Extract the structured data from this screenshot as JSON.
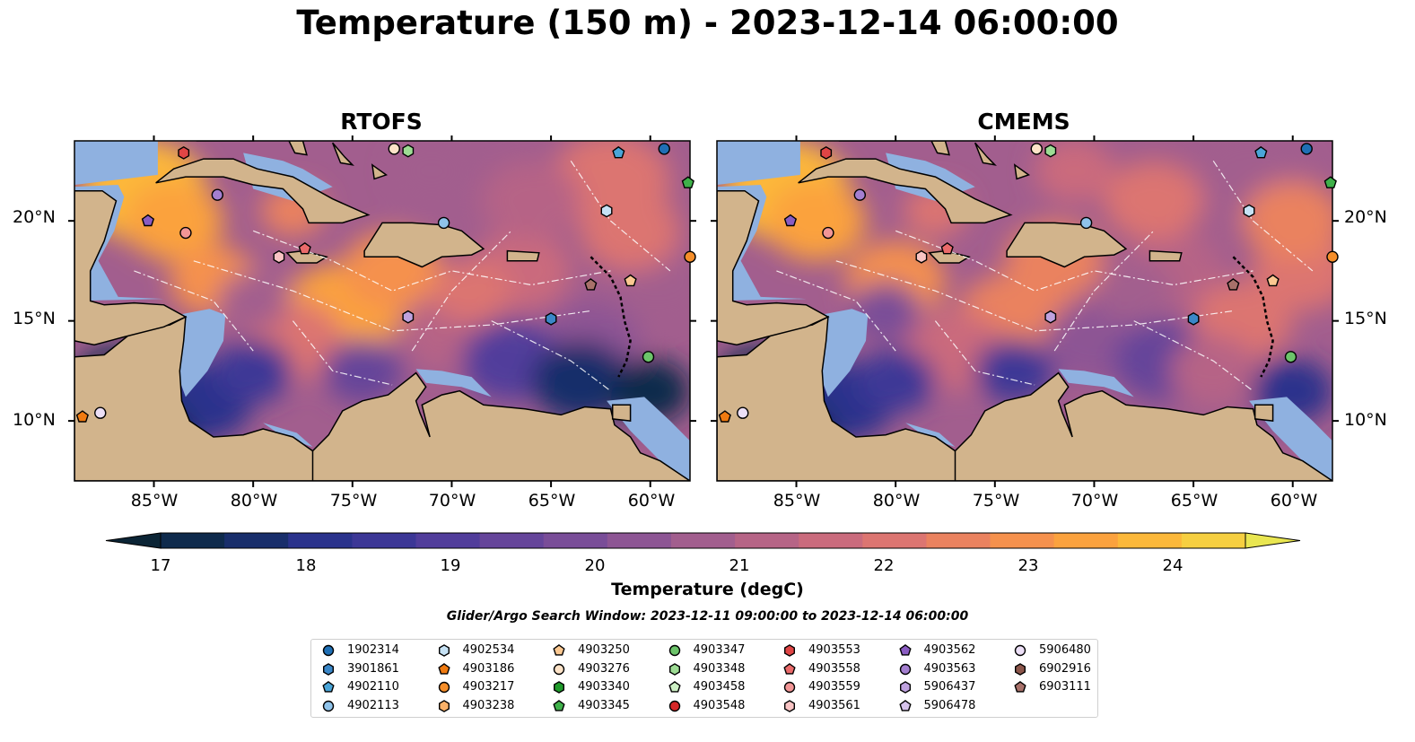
{
  "title": "Temperature (150 m) - 2023-12-14 06:00:00",
  "panels": [
    {
      "title": "RTOFS"
    },
    {
      "title": "CMEMS"
    }
  ],
  "map": {
    "lon_range": [
      -89,
      -58
    ],
    "lat_range": [
      7,
      24
    ],
    "lat_ticks": [
      "20°N",
      "15°N",
      "10°N"
    ],
    "lon_ticks": [
      "85°W",
      "80°W",
      "75°W",
      "70°W",
      "65°W",
      "60°W"
    ],
    "colors": {
      "land": "#d2b48c",
      "shelf": "#8fb1e0",
      "deep": "#0b2435",
      "coast": "#000000"
    }
  },
  "colorbar": {
    "label": "Temperature (degC)",
    "ticks": [
      "17",
      "18",
      "19",
      "20",
      "21",
      "22",
      "23",
      "24"
    ],
    "min": 16.5,
    "max": 24.5,
    "step": 0.5,
    "colors": [
      "#0b2435",
      "#0e2a4c",
      "#182e6b",
      "#2a328c",
      "#3c3796",
      "#513d9b",
      "#65459a",
      "#794d98",
      "#8d5594",
      "#a25e8e",
      "#b66486",
      "#ca6b7d",
      "#dc7571",
      "#ea825f",
      "#f5914d",
      "#fba23e",
      "#fcb83a",
      "#f6cf41",
      "#e9e651"
    ]
  },
  "search_window": "Glider/Argo Search Window: 2023-12-11 09:00:00 to 2023-12-14 06:00:00",
  "legend": [
    {
      "id": "1902314",
      "marker": "circle",
      "color": "#1f6fb5"
    },
    {
      "id": "3901861",
      "marker": "hexagon",
      "color": "#3a87c8"
    },
    {
      "id": "4902110",
      "marker": "pentagon",
      "color": "#4aa5d8"
    },
    {
      "id": "4902113",
      "marker": "circle",
      "color": "#8fc3ea"
    },
    {
      "id": "4902534",
      "marker": "hexagon",
      "color": "#c6e2f5"
    },
    {
      "id": "4903186",
      "marker": "pentagon",
      "color": "#f07a10"
    },
    {
      "id": "4903217",
      "marker": "circle",
      "color": "#f58e2a"
    },
    {
      "id": "4903238",
      "marker": "hexagon",
      "color": "#f9b169"
    },
    {
      "id": "4903250",
      "marker": "pentagon",
      "color": "#fbc891"
    },
    {
      "id": "4903276",
      "marker": "circle",
      "color": "#fde3c8"
    },
    {
      "id": "4903340",
      "marker": "hexagon",
      "color": "#1f9a2a"
    },
    {
      "id": "4903345",
      "marker": "pentagon",
      "color": "#3fb14a"
    },
    {
      "id": "4903347",
      "marker": "circle",
      "color": "#6cc46a"
    },
    {
      "id": "4903348",
      "marker": "hexagon",
      "color": "#9ddc94"
    },
    {
      "id": "4903458",
      "marker": "pentagon",
      "color": "#cdf0c5"
    },
    {
      "id": "4903548",
      "marker": "circle",
      "color": "#d62728"
    },
    {
      "id": "4903553",
      "marker": "hexagon",
      "color": "#e04545"
    },
    {
      "id": "4903558",
      "marker": "pentagon",
      "color": "#ea6a6a"
    },
    {
      "id": "4903559",
      "marker": "circle",
      "color": "#f29696"
    },
    {
      "id": "4903561",
      "marker": "hexagon",
      "color": "#f9c4c4"
    },
    {
      "id": "4903562",
      "marker": "pentagon",
      "color": "#8a5cc2"
    },
    {
      "id": "4903563",
      "marker": "circle",
      "color": "#a47fd0"
    },
    {
      "id": "5906437",
      "marker": "hexagon",
      "color": "#bfa2df"
    },
    {
      "id": "5906478",
      "marker": "pentagon",
      "color": "#d7c3ec"
    },
    {
      "id": "5906480",
      "marker": "circle",
      "color": "#ecdff6"
    },
    {
      "id": "6902916",
      "marker": "hexagon",
      "color": "#8c564b"
    },
    {
      "id": "6903111",
      "marker": "pentagon",
      "color": "#a8716a"
    }
  ],
  "floats": [
    {
      "id": "4903553",
      "lon": -83.5,
      "lat": 23.4
    },
    {
      "id": "4903563",
      "lon": -81.8,
      "lat": 21.3
    },
    {
      "id": "4903562",
      "lon": -85.3,
      "lat": 20.0
    },
    {
      "id": "4903559",
      "lon": -83.4,
      "lat": 19.4
    },
    {
      "id": "4903561",
      "lon": -78.7,
      "lat": 18.2
    },
    {
      "id": "4903558",
      "lon": -77.4,
      "lat": 18.6
    },
    {
      "id": "4903276",
      "lon": -72.9,
      "lat": 23.6
    },
    {
      "id": "4903348",
      "lon": -72.2,
      "lat": 23.5
    },
    {
      "id": "4902113",
      "lon": -70.4,
      "lat": 19.9
    },
    {
      "id": "4902534",
      "lon": -62.2,
      "lat": 20.5
    },
    {
      "id": "4902110",
      "lon": -61.6,
      "lat": 23.4
    },
    {
      "id": "1902314",
      "lon": -59.3,
      "lat": 23.6
    },
    {
      "id": "4903345",
      "lon": -58.1,
      "lat": 21.9
    },
    {
      "id": "4903217",
      "lon": -58.0,
      "lat": 18.2
    },
    {
      "id": "6903111",
      "lon": -63.0,
      "lat": 16.8
    },
    {
      "id": "4903250",
      "lon": -61.0,
      "lat": 17.0
    },
    {
      "id": "5906437",
      "lon": -72.2,
      "lat": 15.2
    },
    {
      "id": "3901861",
      "lon": -65.0,
      "lat": 15.1
    },
    {
      "id": "4903347",
      "lon": -60.1,
      "lat": 13.2
    },
    {
      "id": "4903186",
      "lon": -88.6,
      "lat": 10.2
    },
    {
      "id": "5906480",
      "lon": -87.7,
      "lat": 10.4
    }
  ]
}
